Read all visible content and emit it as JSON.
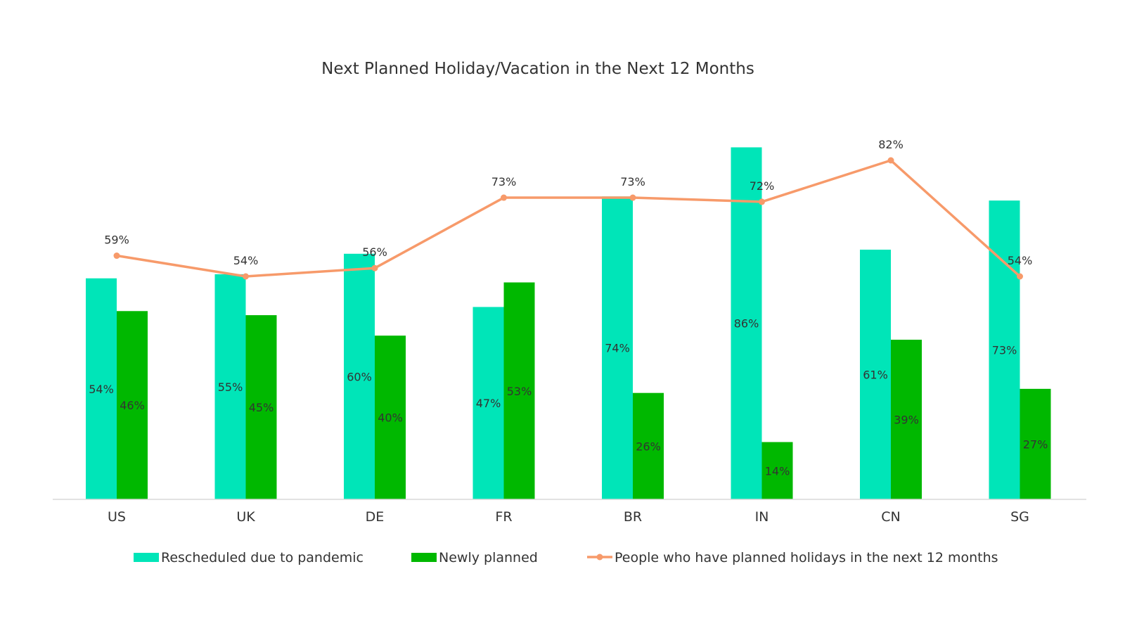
{
  "chart_data": {
    "type": "bar",
    "title": "Next Planned Holiday/Vacation in the Next 12 Months",
    "categories": [
      "US",
      "UK",
      "DE",
      "FR",
      "BR",
      "IN",
      "CN",
      "SG"
    ],
    "series": [
      {
        "name": "Rescheduled due to pandemic",
        "kind": "bar",
        "color": "#00e5b8",
        "values": [
          54,
          55,
          60,
          47,
          74,
          86,
          61,
          73
        ],
        "labels": [
          "54%",
          "55%",
          "60%",
          "47%",
          "74%",
          "86%",
          "61%",
          "73%"
        ]
      },
      {
        "name": "Newly planned",
        "kind": "bar",
        "color": "#00b800",
        "values": [
          46,
          45,
          40,
          53,
          26,
          14,
          39,
          27
        ],
        "labels": [
          "46%",
          "45%",
          "40%",
          "53%",
          "26%",
          "14%",
          "39%",
          "27%"
        ]
      },
      {
        "name": "People who have planned holidays in the next 12 months",
        "kind": "line",
        "color": "#f79a6a",
        "values": [
          59,
          54,
          56,
          73,
          73,
          72,
          82,
          54
        ],
        "labels": [
          "59%",
          "54%",
          "56%",
          "73%",
          "73%",
          "72%",
          "82%",
          "54%"
        ]
      }
    ],
    "legend_position": "bottom",
    "grid": false
  }
}
